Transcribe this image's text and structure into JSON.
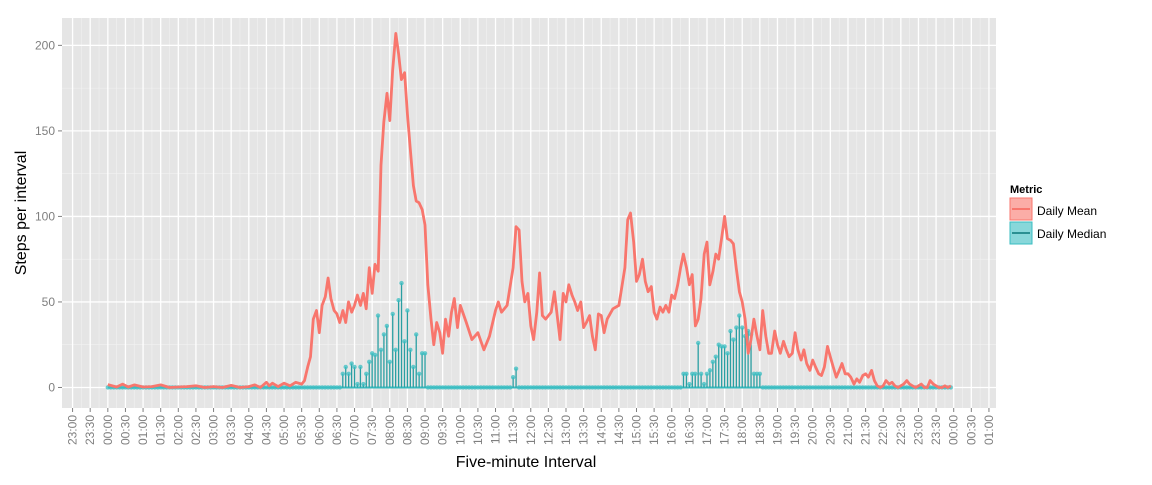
{
  "chart_data": {
    "type": "line",
    "title": "",
    "xlabel": "Five-minute Interval",
    "ylabel": "Steps per interval",
    "x_ticks": [
      "23:00",
      "23:30",
      "00:00",
      "00:30",
      "01:00",
      "01:30",
      "02:00",
      "02:30",
      "03:00",
      "03:30",
      "04:00",
      "04:30",
      "05:00",
      "05:30",
      "06:00",
      "06:30",
      "07:00",
      "07:30",
      "08:00",
      "08:30",
      "09:00",
      "09:30",
      "10:00",
      "10:30",
      "11:00",
      "11:30",
      "12:00",
      "12:30",
      "13:00",
      "13:30",
      "14:00",
      "14:30",
      "15:00",
      "15:30",
      "16:00",
      "16:30",
      "17:00",
      "17:30",
      "18:00",
      "18:30",
      "19:00",
      "19:30",
      "20:00",
      "20:30",
      "21:00",
      "21:30",
      "22:00",
      "22:30",
      "23:00",
      "23:30",
      "00:00",
      "00:30",
      "01:00"
    ],
    "x_tick_hours": [
      -1,
      -0.5,
      0,
      0.5,
      1,
      1.5,
      2,
      2.5,
      3,
      3.5,
      4,
      4.5,
      5,
      5.5,
      6,
      6.5,
      7,
      7.5,
      8,
      8.5,
      9,
      9.5,
      10,
      10.5,
      11,
      11.5,
      12,
      12.5,
      13,
      13.5,
      14,
      14.5,
      15,
      15.5,
      16,
      16.5,
      17,
      17.5,
      18,
      18.5,
      19,
      19.5,
      20,
      20.5,
      21,
      21.5,
      22,
      22.5,
      23,
      23.5,
      24,
      24.5,
      25
    ],
    "xlim_hours": [
      -1.3,
      25.2
    ],
    "y_ticks": [
      0,
      50,
      100,
      150,
      200
    ],
    "ylim": [
      -12,
      216
    ],
    "grid": true,
    "legend": {
      "title": "Metric",
      "position": "right",
      "entries": [
        "Daily Mean",
        "Daily Median"
      ]
    },
    "series": [
      {
        "name": "Daily Mean",
        "color": "#f8766d",
        "style": "line",
        "points": [
          [
            0,
            1.7
          ],
          [
            0.25,
            0.3
          ],
          [
            0.42,
            2
          ],
          [
            0.58,
            0.3
          ],
          [
            0.75,
            1.5
          ],
          [
            1,
            0.3
          ],
          [
            1.25,
            0.5
          ],
          [
            1.5,
            1.5
          ],
          [
            1.75,
            0
          ],
          [
            2,
            0.3
          ],
          [
            2.25,
            0.5
          ],
          [
            2.5,
            1
          ],
          [
            2.75,
            0
          ],
          [
            3,
            0.5
          ],
          [
            3.25,
            0
          ],
          [
            3.5,
            1.2
          ],
          [
            3.75,
            0
          ],
          [
            4,
            0.5
          ],
          [
            4.17,
            1.5
          ],
          [
            4.33,
            0
          ],
          [
            4.5,
            3
          ],
          [
            4.58,
            1
          ],
          [
            4.67,
            2.5
          ],
          [
            4.83,
            0.5
          ],
          [
            5,
            2.5
          ],
          [
            5.17,
            1
          ],
          [
            5.33,
            3
          ],
          [
            5.5,
            2
          ],
          [
            5.58,
            4
          ],
          [
            5.67,
            12
          ],
          [
            5.75,
            18
          ],
          [
            5.83,
            40
          ],
          [
            5.92,
            45
          ],
          [
            6,
            32
          ],
          [
            6.08,
            48
          ],
          [
            6.17,
            53
          ],
          [
            6.25,
            64
          ],
          [
            6.33,
            52
          ],
          [
            6.42,
            45
          ],
          [
            6.5,
            43
          ],
          [
            6.58,
            38
          ],
          [
            6.67,
            45
          ],
          [
            6.75,
            38
          ],
          [
            6.83,
            50
          ],
          [
            6.92,
            44
          ],
          [
            7,
            48
          ],
          [
            7.08,
            54
          ],
          [
            7.17,
            48
          ],
          [
            7.25,
            55
          ],
          [
            7.33,
            46
          ],
          [
            7.42,
            70
          ],
          [
            7.5,
            55
          ],
          [
            7.58,
            72
          ],
          [
            7.67,
            68
          ],
          [
            7.75,
            130
          ],
          [
            7.83,
            155
          ],
          [
            7.92,
            172
          ],
          [
            8,
            156
          ],
          [
            8.08,
            185
          ],
          [
            8.17,
            207
          ],
          [
            8.25,
            195
          ],
          [
            8.33,
            180
          ],
          [
            8.42,
            184
          ],
          [
            8.5,
            160
          ],
          [
            8.58,
            140
          ],
          [
            8.67,
            118
          ],
          [
            8.75,
            109
          ],
          [
            8.83,
            108
          ],
          [
            8.92,
            104
          ],
          [
            9,
            95
          ],
          [
            9.08,
            60
          ],
          [
            9.17,
            40
          ],
          [
            9.25,
            25
          ],
          [
            9.33,
            38
          ],
          [
            9.42,
            32
          ],
          [
            9.5,
            20
          ],
          [
            9.58,
            40
          ],
          [
            9.67,
            30
          ],
          [
            9.75,
            44
          ],
          [
            9.83,
            52
          ],
          [
            9.92,
            35
          ],
          [
            10,
            48
          ],
          [
            10.17,
            38
          ],
          [
            10.33,
            28
          ],
          [
            10.5,
            32
          ],
          [
            10.67,
            22
          ],
          [
            10.83,
            30
          ],
          [
            11,
            45
          ],
          [
            11.08,
            50
          ],
          [
            11.17,
            44
          ],
          [
            11.33,
            48
          ],
          [
            11.5,
            70
          ],
          [
            11.58,
            94
          ],
          [
            11.67,
            92
          ],
          [
            11.75,
            62
          ],
          [
            11.83,
            50
          ],
          [
            11.92,
            55
          ],
          [
            12,
            36
          ],
          [
            12.08,
            28
          ],
          [
            12.17,
            44
          ],
          [
            12.25,
            67
          ],
          [
            12.33,
            42
          ],
          [
            12.42,
            40
          ],
          [
            12.5,
            42
          ],
          [
            12.58,
            44
          ],
          [
            12.67,
            56
          ],
          [
            12.75,
            42
          ],
          [
            12.83,
            28
          ],
          [
            12.92,
            55
          ],
          [
            13,
            50
          ],
          [
            13.08,
            60
          ],
          [
            13.17,
            54
          ],
          [
            13.25,
            50
          ],
          [
            13.33,
            45
          ],
          [
            13.42,
            50
          ],
          [
            13.5,
            35
          ],
          [
            13.58,
            38
          ],
          [
            13.67,
            42
          ],
          [
            13.75,
            30
          ],
          [
            13.83,
            22
          ],
          [
            13.92,
            43
          ],
          [
            14,
            42
          ],
          [
            14.08,
            32
          ],
          [
            14.17,
            40
          ],
          [
            14.33,
            46
          ],
          [
            14.5,
            48
          ],
          [
            14.67,
            70
          ],
          [
            14.75,
            98
          ],
          [
            14.83,
            102
          ],
          [
            14.92,
            85
          ],
          [
            15,
            62
          ],
          [
            15.08,
            66
          ],
          [
            15.17,
            75
          ],
          [
            15.25,
            62
          ],
          [
            15.33,
            56
          ],
          [
            15.42,
            59
          ],
          [
            15.5,
            44
          ],
          [
            15.58,
            40
          ],
          [
            15.67,
            47
          ],
          [
            15.75,
            44
          ],
          [
            15.83,
            48
          ],
          [
            15.92,
            44
          ],
          [
            16,
            54
          ],
          [
            16.08,
            52
          ],
          [
            16.17,
            60
          ],
          [
            16.25,
            70
          ],
          [
            16.33,
            78
          ],
          [
            16.42,
            70
          ],
          [
            16.5,
            60
          ],
          [
            16.58,
            66
          ],
          [
            16.67,
            36
          ],
          [
            16.75,
            40
          ],
          [
            16.83,
            52
          ],
          [
            16.92,
            78
          ],
          [
            17,
            85
          ],
          [
            17.08,
            60
          ],
          [
            17.17,
            68
          ],
          [
            17.25,
            78
          ],
          [
            17.33,
            75
          ],
          [
            17.42,
            88
          ],
          [
            17.5,
            100
          ],
          [
            17.58,
            87
          ],
          [
            17.67,
            86
          ],
          [
            17.75,
            84
          ],
          [
            17.83,
            70
          ],
          [
            17.92,
            56
          ],
          [
            18,
            50
          ],
          [
            18.08,
            40
          ],
          [
            18.17,
            20
          ],
          [
            18.25,
            28
          ],
          [
            18.33,
            40
          ],
          [
            18.42,
            30
          ],
          [
            18.5,
            22
          ],
          [
            18.58,
            45
          ],
          [
            18.67,
            30
          ],
          [
            18.75,
            20
          ],
          [
            18.83,
            20
          ],
          [
            18.92,
            33
          ],
          [
            19,
            25
          ],
          [
            19.08,
            20
          ],
          [
            19.17,
            27
          ],
          [
            19.25,
            22
          ],
          [
            19.33,
            18
          ],
          [
            19.42,
            20
          ],
          [
            19.5,
            32
          ],
          [
            19.58,
            22
          ],
          [
            19.67,
            16
          ],
          [
            19.75,
            22
          ],
          [
            19.83,
            14
          ],
          [
            19.92,
            10
          ],
          [
            20,
            16
          ],
          [
            20.08,
            12
          ],
          [
            20.17,
            8
          ],
          [
            20.25,
            7
          ],
          [
            20.33,
            12
          ],
          [
            20.42,
            24
          ],
          [
            20.5,
            18
          ],
          [
            20.58,
            12
          ],
          [
            20.67,
            6
          ],
          [
            20.75,
            10
          ],
          [
            20.83,
            14
          ],
          [
            20.92,
            8
          ],
          [
            21,
            8
          ],
          [
            21.08,
            6
          ],
          [
            21.17,
            2
          ],
          [
            21.25,
            5
          ],
          [
            21.33,
            3
          ],
          [
            21.42,
            7
          ],
          [
            21.5,
            8
          ],
          [
            21.58,
            6
          ],
          [
            21.67,
            10
          ],
          [
            21.75,
            4
          ],
          [
            21.83,
            1
          ],
          [
            21.92,
            0
          ],
          [
            22,
            1
          ],
          [
            22.08,
            4
          ],
          [
            22.17,
            2
          ],
          [
            22.25,
            3
          ],
          [
            22.33,
            1
          ],
          [
            22.42,
            0
          ],
          [
            22.5,
            1
          ],
          [
            22.58,
            2
          ],
          [
            22.67,
            4
          ],
          [
            22.75,
            2
          ],
          [
            22.83,
            1
          ],
          [
            22.92,
            0
          ],
          [
            23,
            1
          ],
          [
            23.08,
            2
          ],
          [
            23.17,
            0
          ],
          [
            23.25,
            0
          ],
          [
            23.33,
            4
          ],
          [
            23.42,
            2
          ],
          [
            23.5,
            1
          ],
          [
            23.58,
            0
          ],
          [
            23.67,
            0
          ],
          [
            23.75,
            1
          ],
          [
            23.83,
            0
          ],
          [
            23.92,
            1
          ]
        ]
      },
      {
        "name": "Daily Median",
        "color": "#39bdc1",
        "style": "stem",
        "points": [
          [
            6.67,
            8
          ],
          [
            6.75,
            12
          ],
          [
            6.83,
            8
          ],
          [
            6.92,
            14
          ],
          [
            7,
            12
          ],
          [
            7.08,
            2
          ],
          [
            7.17,
            12
          ],
          [
            7.25,
            2
          ],
          [
            7.33,
            8
          ],
          [
            7.42,
            15
          ],
          [
            7.5,
            20
          ],
          [
            7.58,
            19
          ],
          [
            7.67,
            42
          ],
          [
            7.75,
            22
          ],
          [
            7.83,
            31
          ],
          [
            7.92,
            36
          ],
          [
            8,
            15
          ],
          [
            8.08,
            43
          ],
          [
            8.17,
            22
          ],
          [
            8.25,
            51
          ],
          [
            8.33,
            61
          ],
          [
            8.42,
            27
          ],
          [
            8.5,
            45
          ],
          [
            8.58,
            22
          ],
          [
            8.67,
            12
          ],
          [
            8.75,
            31
          ],
          [
            8.83,
            8
          ],
          [
            8.92,
            20
          ],
          [
            9,
            20
          ],
          [
            11.5,
            6
          ],
          [
            11.58,
            11
          ],
          [
            16.33,
            8
          ],
          [
            16.42,
            8
          ],
          [
            16.5,
            2
          ],
          [
            16.58,
            8
          ],
          [
            16.67,
            8
          ],
          [
            16.75,
            26
          ],
          [
            16.83,
            8
          ],
          [
            16.92,
            2
          ],
          [
            17,
            8
          ],
          [
            17.08,
            10
          ],
          [
            17.17,
            15
          ],
          [
            17.25,
            18
          ],
          [
            17.33,
            25
          ],
          [
            17.42,
            24
          ],
          [
            17.5,
            24
          ],
          [
            17.58,
            20
          ],
          [
            17.67,
            33
          ],
          [
            17.75,
            28
          ],
          [
            17.83,
            35
          ],
          [
            17.92,
            42
          ],
          [
            18,
            35
          ],
          [
            18.08,
            30
          ],
          [
            18.17,
            33
          ],
          [
            18.25,
            31
          ],
          [
            18.33,
            8
          ],
          [
            18.42,
            8
          ],
          [
            18.5,
            8
          ]
        ]
      }
    ]
  }
}
